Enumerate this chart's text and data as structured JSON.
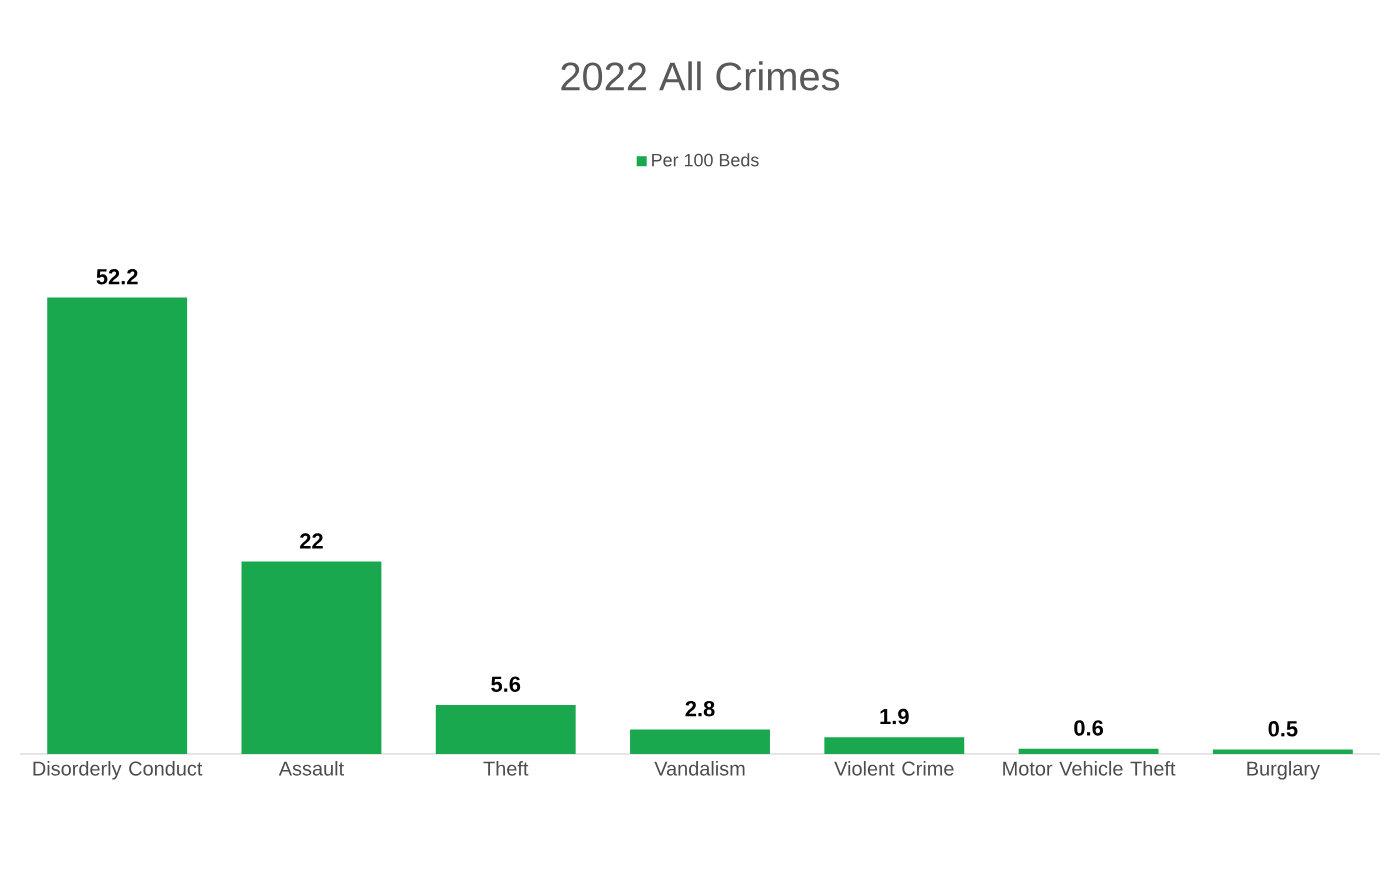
{
  "chart_data": {
    "type": "bar",
    "title": "2022 All Crimes",
    "categories": [
      "Disorderly Conduct",
      "Assault",
      "Theft",
      "Vandalism",
      "Violent Crime",
      "Motor Vehicle Theft",
      "Burglary"
    ],
    "series": [
      {
        "name": "Per 100 Beds",
        "color": "#1aa84f",
        "values": [
          52.2,
          22,
          5.6,
          2.8,
          1.9,
          0.6,
          0.5
        ]
      }
    ],
    "data_labels": true,
    "legend": "top"
  }
}
